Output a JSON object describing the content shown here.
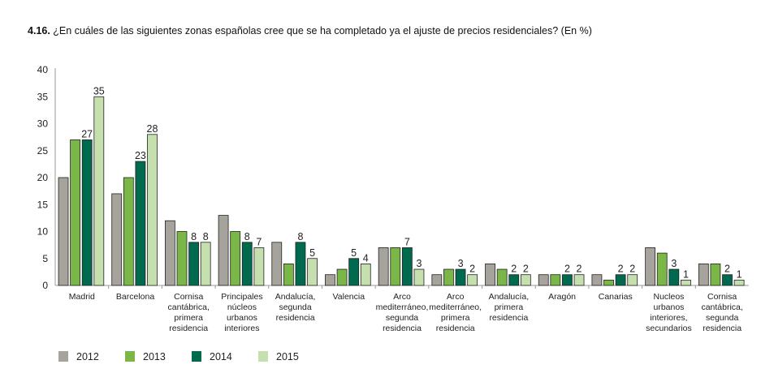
{
  "chart_data": {
    "type": "bar",
    "title_number": "4.16.",
    "title": "¿En cuáles de las siguientes zonas españolas cree que se ha completado ya el ajuste de precios residenciales? (En %)",
    "xlabel": "",
    "ylabel": "",
    "ylim": [
      0,
      40
    ],
    "yticks": [
      0,
      5,
      10,
      15,
      20,
      25,
      30,
      35,
      40
    ],
    "grid": false,
    "legend_position": "bottom-left",
    "categories": [
      "Madrid",
      "Barcelona",
      "Cornisa\ncantábrica,\nprimera\nresidencia",
      "Principales\nnúcleos\nurbanos\ninteriores",
      "Andalucía,\nsegunda\nresidencia",
      "Valencia",
      "Arco\nmediterráneo,\nsegunda\nresidencia",
      "Arco\nmediterráneo,\nprimera\nresidencia",
      "Andalucía,\nprimera\nresidencia",
      "Aragón",
      "Canarias",
      "Nucleos\nurbanos\ninteriores,\nsecundarios",
      "Cornisa\ncantábrica,\nsegunda\nresidencia"
    ],
    "series": [
      {
        "name": "2012",
        "color": "#a6a29c",
        "show_labels": false,
        "values": [
          20,
          17,
          12,
          13,
          8,
          2,
          7,
          2,
          4,
          2,
          2,
          7,
          4
        ]
      },
      {
        "name": "2013",
        "color": "#7ab648",
        "show_labels": false,
        "values": [
          27,
          20,
          10,
          10,
          4,
          3,
          7,
          3,
          3,
          2,
          1,
          6,
          4
        ]
      },
      {
        "name": "2014",
        "color": "#006a4e",
        "show_labels": true,
        "values": [
          27,
          23,
          8,
          8,
          8,
          5,
          7,
          3,
          2,
          2,
          2,
          3,
          2
        ]
      },
      {
        "name": "2015",
        "color": "#c6dfae",
        "show_labels": true,
        "values": [
          35,
          28,
          8,
          7,
          5,
          4,
          3,
          2,
          2,
          2,
          2,
          1,
          1
        ]
      }
    ]
  }
}
